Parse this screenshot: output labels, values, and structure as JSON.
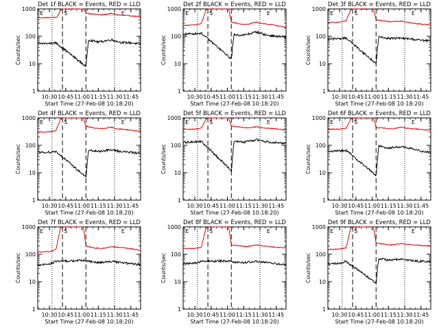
{
  "figure": {
    "start_time_label": "Start Time (27-Feb-08 10:18:20)",
    "ylabel": "Counts/sec",
    "yticks": [
      "1",
      "10",
      "100",
      "1000"
    ],
    "xticks": [
      "10:30",
      "10:45",
      "11:00",
      "11:15",
      "11:30",
      "11:45"
    ],
    "markers": [
      {
        "text": "E",
        "t": 10.333
      },
      {
        "text": "S",
        "t": 10.7
      },
      {
        "text": "E",
        "t": 11.583
      }
    ],
    "colors": {
      "events": "#000000",
      "lld": "#e00000",
      "axis": "#000000"
    }
  },
  "chart_data": [
    {
      "type": "line",
      "title": "Det 1f BLACK = Events, RED = LLD",
      "xlabel": "Start Time (27-Feb-08 10:18:20)",
      "ylabel": "Counts/sec",
      "x_unit": "hours after 10:00",
      "xlim": [
        10.32,
        11.9
      ],
      "ylim": [
        1,
        1000
      ],
      "yscale": "log",
      "vlines_dotted": [
        10.54,
        11.5
      ],
      "vlines_dashed": [
        10.7,
        11.06
      ],
      "series": [
        {
          "name": "LLD",
          "color": "#e00000",
          "x": [
            10.32,
            10.5,
            10.62,
            10.67,
            10.72,
            11.0,
            11.02,
            11.06,
            11.2,
            11.3,
            11.45,
            11.55,
            11.75,
            11.9
          ],
          "y": [
            480,
            480,
            500,
            900,
            1000,
            1000,
            1000,
            700,
            640,
            600,
            680,
            600,
            560,
            520
          ]
        },
        {
          "name": "Events",
          "color": "#000000",
          "x": [
            10.32,
            10.5,
            10.6,
            11.06,
            11.1,
            11.25,
            11.45,
            11.6,
            11.75,
            11.9
          ],
          "y": [
            55,
            55,
            58,
            8,
            75,
            62,
            75,
            60,
            58,
            52
          ]
        }
      ]
    },
    {
      "type": "line",
      "title": "Det 2f BLACK = Events, RED = LLD",
      "xlabel": "Start Time (27-Feb-08 10:18:20)",
      "ylabel": "Counts/sec",
      "x_unit": "hours after 10:00",
      "xlim": [
        10.32,
        11.9
      ],
      "ylim": [
        1,
        1000
      ],
      "yscale": "log",
      "vlines_dotted": [
        10.54,
        11.5
      ],
      "vlines_dashed": [
        10.7,
        11.06
      ],
      "series": [
        {
          "name": "LLD",
          "color": "#e00000",
          "x": [
            10.32,
            10.5,
            10.6,
            10.67,
            10.72,
            11.0,
            11.02,
            11.06,
            11.2,
            11.3,
            11.45,
            11.55,
            11.75,
            11.9
          ],
          "y": [
            250,
            260,
            290,
            900,
            1000,
            1000,
            1000,
            330,
            280,
            270,
            330,
            290,
            250,
            210
          ]
        },
        {
          "name": "Events",
          "color": "#000000",
          "x": [
            10.32,
            10.5,
            10.6,
            11.06,
            11.1,
            11.25,
            11.45,
            11.6,
            11.75,
            11.9
          ],
          "y": [
            120,
            125,
            130,
            15,
            115,
            110,
            145,
            110,
            100,
            95
          ]
        }
      ]
    },
    {
      "type": "line",
      "title": "Det 3f BLACK = Events, RED = LLD",
      "xlabel": "Start Time (27-Feb-08 10:18:20)",
      "ylabel": "Counts/sec",
      "x_unit": "hours after 10:00",
      "xlim": [
        10.32,
        11.9
      ],
      "ylim": [
        1,
        1000
      ],
      "yscale": "log",
      "vlines_dotted": [
        10.54,
        11.5
      ],
      "vlines_dashed": [
        10.7,
        11.06
      ],
      "series": [
        {
          "name": "LLD",
          "color": "#e00000",
          "x": [
            10.32,
            10.5,
            10.6,
            10.67,
            10.72,
            11.0,
            11.02,
            11.06,
            11.2,
            11.3,
            11.45,
            11.55,
            11.75,
            11.9
          ],
          "y": [
            320,
            330,
            360,
            900,
            1000,
            1000,
            1000,
            400,
            360,
            340,
            360,
            320,
            280,
            260
          ]
        },
        {
          "name": "Events",
          "color": "#000000",
          "x": [
            10.32,
            10.5,
            10.6,
            11.06,
            11.1,
            11.25,
            11.45,
            11.6,
            11.75,
            11.9
          ],
          "y": [
            80,
            82,
            88,
            10,
            95,
            85,
            85,
            80,
            72,
            68
          ]
        }
      ]
    },
    {
      "type": "line",
      "title": "Det 4f BLACK = Events, RED = LLD",
      "xlabel": "Start Time (27-Feb-08 10:18:20)",
      "ylabel": "Counts/sec",
      "x_unit": "hours after 10:00",
      "xlim": [
        10.32,
        11.9
      ],
      "ylim": [
        1,
        1000
      ],
      "yscale": "log",
      "vlines_dotted": [
        10.54,
        11.5
      ],
      "vlines_dashed": [
        10.7,
        11.06
      ],
      "series": [
        {
          "name": "LLD",
          "color": "#e00000",
          "x": [
            10.32,
            10.5,
            10.6,
            10.67,
            10.72,
            11.0,
            11.02,
            11.06,
            11.2,
            11.3,
            11.45,
            11.55,
            11.75,
            11.9
          ],
          "y": [
            300,
            310,
            340,
            900,
            1000,
            1000,
            1000,
            500,
            420,
            400,
            450,
            400,
            360,
            320
          ]
        },
        {
          "name": "Events",
          "color": "#000000",
          "x": [
            10.32,
            10.5,
            10.6,
            11.06,
            11.1,
            11.25,
            11.45,
            11.6,
            11.75,
            11.9
          ],
          "y": [
            55,
            56,
            60,
            7,
            65,
            60,
            68,
            60,
            55,
            52
          ]
        }
      ]
    },
    {
      "type": "line",
      "title": "Det 5f BLACK = Events, RED = LLD",
      "xlabel": "Start Time (27-Feb-08 10:18:20)",
      "ylabel": "Counts/sec",
      "x_unit": "hours after 10:00",
      "xlim": [
        10.32,
        11.9
      ],
      "ylim": [
        1,
        1000
      ],
      "yscale": "log",
      "vlines_dotted": [
        10.54,
        11.5
      ],
      "vlines_dashed": [
        10.7,
        11.06
      ],
      "series": [
        {
          "name": "LLD",
          "color": "#e00000",
          "x": [
            10.32,
            10.5,
            10.6,
            10.67,
            10.72,
            11.0,
            11.02,
            11.06,
            11.2,
            11.3,
            11.45,
            11.55,
            11.75,
            11.9
          ],
          "y": [
            380,
            390,
            420,
            900,
            1000,
            1000,
            1000,
            500,
            460,
            440,
            470,
            430,
            400,
            360
          ]
        },
        {
          "name": "Events",
          "color": "#000000",
          "x": [
            10.32,
            10.5,
            10.6,
            11.06,
            11.1,
            11.25,
            11.45,
            11.6,
            11.75,
            11.9
          ],
          "y": [
            130,
            135,
            140,
            12,
            140,
            130,
            160,
            135,
            125,
            120
          ]
        }
      ]
    },
    {
      "type": "line",
      "title": "Det 6f BLACK = Events, RED = LLD",
      "xlabel": "Start Time (27-Feb-08 10:18:20)",
      "ylabel": "Counts/sec",
      "x_unit": "hours after 10:00",
      "xlim": [
        10.32,
        11.9
      ],
      "ylim": [
        1,
        1000
      ],
      "yscale": "log",
      "vlines_dotted": [
        10.54,
        11.5
      ],
      "vlines_dashed": [
        10.7,
        11.06
      ],
      "series": [
        {
          "name": "LLD",
          "color": "#e00000",
          "x": [
            10.32,
            10.5,
            10.6,
            10.67,
            10.72,
            11.0,
            11.02,
            11.06,
            11.2,
            11.3,
            11.45,
            11.55,
            11.75,
            11.9
          ],
          "y": [
            380,
            390,
            420,
            900,
            1000,
            1000,
            1000,
            450,
            420,
            400,
            460,
            420,
            380,
            360
          ]
        },
        {
          "name": "Events",
          "color": "#000000",
          "x": [
            10.32,
            10.5,
            10.6,
            11.06,
            11.1,
            11.25,
            11.45,
            11.6,
            11.75,
            11.9
          ],
          "y": [
            60,
            62,
            66,
            8,
            95,
            80,
            90,
            75,
            62,
            56
          ]
        }
      ]
    },
    {
      "type": "line",
      "title": "Det 7f BLACK = Events, RED = LLD",
      "xlabel": "Start Time (27-Feb-08 10:18:20)",
      "ylabel": "Counts/sec",
      "x_unit": "hours after 10:00",
      "xlim": [
        10.32,
        11.9
      ],
      "ylim": [
        1,
        1000
      ],
      "yscale": "log",
      "vlines_dotted": [
        10.54,
        11.5
      ],
      "vlines_dashed": [
        10.7,
        11.06
      ],
      "series": [
        {
          "name": "LLD",
          "color": "#e00000",
          "x": [
            10.32,
            10.5,
            10.6,
            10.67,
            10.72,
            11.0,
            11.02,
            11.06,
            11.2,
            11.3,
            11.45,
            11.55,
            11.75,
            11.9
          ],
          "y": [
            120,
            125,
            150,
            900,
            1000,
            1000,
            1000,
            200,
            170,
            160,
            190,
            180,
            160,
            140
          ]
        },
        {
          "name": "Events",
          "color": "#000000",
          "x": [
            10.32,
            10.5,
            10.6,
            11.06,
            11.1,
            11.25,
            11.45,
            11.6,
            11.75,
            11.9
          ],
          "y": [
            40,
            45,
            55,
            60,
            55,
            50,
            55,
            50,
            45,
            42
          ]
        }
      ]
    },
    {
      "type": "line",
      "title": "Det 8f BLACK = Events, RED = LLD",
      "xlabel": "Start Time (27-Feb-08 10:18:20)",
      "ylabel": "Counts/sec",
      "x_unit": "hours after 10:00",
      "xlim": [
        10.32,
        11.9
      ],
      "ylim": [
        1,
        1000
      ],
      "yscale": "log",
      "vlines_dotted": [
        10.54,
        11.5
      ],
      "vlines_dashed": [
        10.7,
        11.06
      ],
      "series": [
        {
          "name": "LLD",
          "color": "#e00000",
          "x": [
            10.32,
            10.5,
            10.6,
            10.67,
            10.72,
            11.0,
            11.02,
            11.06,
            11.2,
            11.3,
            11.45,
            11.55,
            11.75,
            11.9
          ],
          "y": [
            160,
            165,
            180,
            900,
            1000,
            1000,
            1000,
            220,
            200,
            190,
            220,
            200,
            180,
            170
          ]
        },
        {
          "name": "Events",
          "color": "#000000",
          "x": [
            10.32,
            10.5,
            10.6,
            11.06,
            11.1,
            11.25,
            11.45,
            11.6,
            11.75,
            11.9
          ],
          "y": [
            45,
            48,
            55,
            58,
            52,
            50,
            55,
            50,
            45,
            42
          ]
        }
      ]
    },
    {
      "type": "line",
      "title": "Det 9f BLACK = Events, RED = LLD",
      "xlabel": "Start Time (27-Feb-08 10:18:20)",
      "ylabel": "Counts/sec",
      "x_unit": "hours after 10:00",
      "xlim": [
        10.32,
        11.9
      ],
      "ylim": [
        1,
        1000
      ],
      "yscale": "log",
      "vlines_dotted": [
        10.54,
        11.5
      ],
      "vlines_dashed": [
        10.7,
        11.06
      ],
      "series": [
        {
          "name": "LLD",
          "color": "#e00000",
          "x": [
            10.32,
            10.5,
            10.6,
            10.67,
            10.72,
            11.0,
            11.02,
            11.06,
            11.2,
            11.3,
            11.45,
            11.55,
            11.75,
            11.9
          ],
          "y": [
            150,
            155,
            170,
            900,
            1000,
            1000,
            1000,
            260,
            230,
            220,
            250,
            230,
            210,
            200
          ]
        },
        {
          "name": "Events",
          "color": "#000000",
          "x": [
            10.32,
            10.5,
            10.6,
            11.06,
            11.1,
            11.25,
            11.45,
            11.6,
            11.75,
            11.9
          ],
          "y": [
            45,
            48,
            55,
            9,
            70,
            62,
            65,
            60,
            55,
            55
          ]
        }
      ]
    }
  ]
}
